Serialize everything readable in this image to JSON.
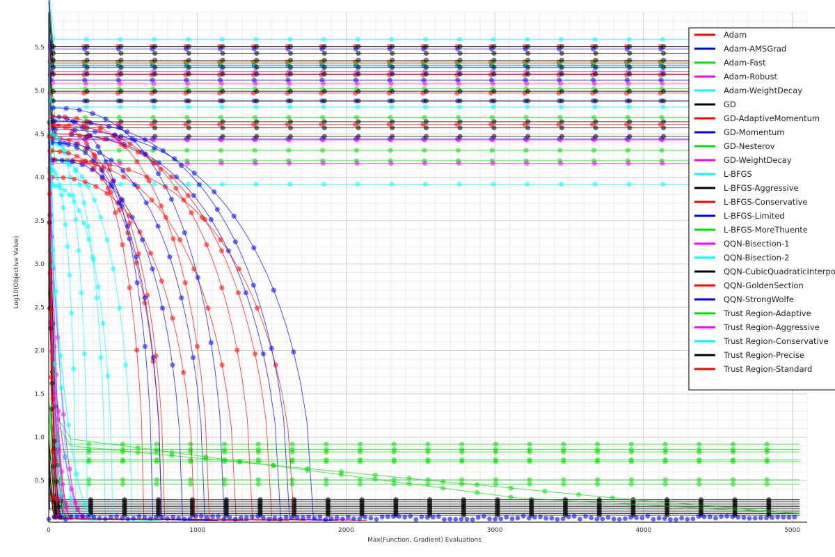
{
  "chart_data": {
    "type": "line",
    "xlabel": "Max(Function, Gradient) Evaluations",
    "ylabel": "Log10(Objective Value)",
    "xlim": [
      0,
      5100
    ],
    "ylim": [
      0.02,
      5.9
    ],
    "x_ticks": [
      0,
      1000,
      2000,
      3000,
      4000,
      5000
    ],
    "y_ticks": [
      0.5,
      1.0,
      1.5,
      2.0,
      2.5,
      3.0,
      3.5,
      4.0,
      4.5,
      5.0,
      5.5
    ],
    "x_tick_labels": [
      "0",
      "1000",
      "2000",
      "3000",
      "4000",
      "5000"
    ],
    "y_tick_labels": [
      "0.5",
      "1.0",
      "1.5",
      "2.0",
      "2.5",
      "3.0",
      "3.5",
      "4.0",
      "4.5",
      "5.0",
      "5.5"
    ],
    "grid": true,
    "legend_position": "top-right",
    "series": [
      {
        "name": "Adam",
        "color": "#ff0000",
        "kind": "flat",
        "levels": [
          5.51,
          5.33,
          5.18,
          4.97,
          4.61
        ],
        "x_end": 5050
      },
      {
        "name": "Adam-AMSGrad",
        "color": "#0000ff",
        "kind": "flat",
        "levels": [
          5.48,
          5.29,
          5.12,
          4.88,
          4.44
        ],
        "x_end": 5050
      },
      {
        "name": "Adam-Fast",
        "color": "#00e000",
        "kind": "flat",
        "levels": [
          5.31,
          5.02,
          4.69,
          4.31,
          4.19
        ],
        "x_end": 5050
      },
      {
        "name": "Adam-Robust",
        "color": "#ff00ff",
        "kind": "flat",
        "levels": [
          5.22,
          5.08,
          4.43,
          4.16
        ],
        "x_end": 5050
      },
      {
        "name": "Adam-WeightDecay",
        "color": "#00ffff",
        "kind": "flat",
        "levels": [
          5.59,
          5.26,
          4.81,
          3.92
        ],
        "x_end": 5050
      },
      {
        "name": "GD",
        "color": "#000000",
        "kind": "flat",
        "levels": [
          5.51,
          5.43,
          5.35,
          5.27,
          5.19,
          4.99,
          4.88,
          4.64,
          4.57,
          4.47
        ],
        "x_end": 5050
      },
      {
        "name": "GD-AdaptiveMomentum",
        "color": "#ff0000",
        "kind": "decay",
        "starts": [
          4.6,
          4.45,
          4.2
        ],
        "x_ends": [
          640,
          780,
          1260
        ]
      },
      {
        "name": "GD-Momentum",
        "color": "#0000ff",
        "kind": "decay",
        "starts": [
          4.7,
          4.4,
          4.5
        ],
        "x_ends": [
          700,
          1050,
          1560
        ]
      },
      {
        "name": "GD-Nesterov",
        "color": "#00e000",
        "kind": "flat",
        "levels": [
          0.92,
          0.86,
          0.83,
          0.74,
          0.72,
          0.51,
          0.46
        ],
        "x_end": 5050
      },
      {
        "name": "GD-WeightDecay",
        "color": "#ff00ff",
        "kind": "fast",
        "starts": [
          5.2,
          3.8,
          2.4
        ],
        "x_ends": [
          90,
          150,
          260
        ]
      },
      {
        "name": "L-BFGS",
        "color": "#00ffff",
        "kind": "decay",
        "starts": [
          4.1,
          4.4,
          4.2
        ],
        "x_ends": [
          180,
          380,
          560
        ]
      },
      {
        "name": "L-BFGS-Aggressive",
        "color": "#000000",
        "kind": "flat",
        "levels": [
          0.28,
          0.26,
          0.24,
          0.22,
          0.2,
          0.18,
          0.16,
          0.14,
          0.12,
          0.1
        ],
        "x_end": 5050
      },
      {
        "name": "L-BFGS-Conservative",
        "color": "#ff0000",
        "kind": "decay",
        "starts": [
          4.7,
          4.6,
          4.5,
          4.2
        ],
        "x_ends": [
          1080,
          1370,
          1500,
          1650
        ]
      },
      {
        "name": "L-BFGS-Limited",
        "color": "#0000ff",
        "kind": "decay",
        "starts": [
          4.8,
          4.65,
          4.55
        ],
        "x_ends": [
          1180,
          1620,
          1780
        ]
      },
      {
        "name": "L-BFGS-MoreThuente",
        "color": "#00e000",
        "kind": "slope",
        "starts": [
          0.98,
          0.9
        ],
        "x_ends": [
          3150,
          3800
        ]
      },
      {
        "name": "QQN-Bisection-1",
        "color": "#ff00ff",
        "kind": "fast",
        "starts": [
          5.5,
          4.0
        ],
        "x_ends": [
          120,
          240
        ]
      },
      {
        "name": "QQN-Bisection-2",
        "color": "#00ffff",
        "kind": "decay",
        "starts": [
          4.5,
          3.9
        ],
        "x_ends": [
          260,
          430
        ]
      },
      {
        "name": "QQN-CubicQuadraticInterpolation",
        "color": "#000000",
        "kind": "fast",
        "starts": [
          5.6,
          4.3
        ],
        "x_ends": [
          60,
          110
        ]
      },
      {
        "name": "QQN-GoldenSection",
        "color": "#ff0000",
        "kind": "decay",
        "starts": [
          4.3,
          4.0
        ],
        "x_ends": [
          760,
          980
        ]
      },
      {
        "name": "QQN-StrongWolfe",
        "color": "#0000ff",
        "kind": "decay",
        "starts": [
          4.4,
          4.2
        ],
        "x_ends": [
          760,
          900
        ]
      },
      {
        "name": "Trust Region-Adaptive",
        "color": "#00e000",
        "kind": "fast",
        "starts": [
          4.9,
          3.2
        ],
        "x_ends": [
          70,
          140
        ]
      },
      {
        "name": "Trust Region-Aggressive",
        "color": "#ff00ff",
        "kind": "fast",
        "starts": [
          4.8,
          2.8
        ],
        "x_ends": [
          80,
          160
        ]
      },
      {
        "name": "Trust Region-Conservative",
        "color": "#00ffff",
        "kind": "fast",
        "starts": [
          5.9,
          5.0,
          3.6
        ],
        "x_ends": [
          100,
          200,
          320
        ]
      },
      {
        "name": "Trust Region-Precise",
        "color": "#000000",
        "kind": "fast",
        "starts": [
          4.2,
          3.0
        ],
        "x_ends": [
          50,
          90
        ]
      },
      {
        "name": "Trust Region-Standard",
        "color": "#ff0000",
        "kind": "fast",
        "starts": [
          5.4,
          4.6
        ],
        "x_ends": [
          40,
          70
        ]
      }
    ]
  }
}
